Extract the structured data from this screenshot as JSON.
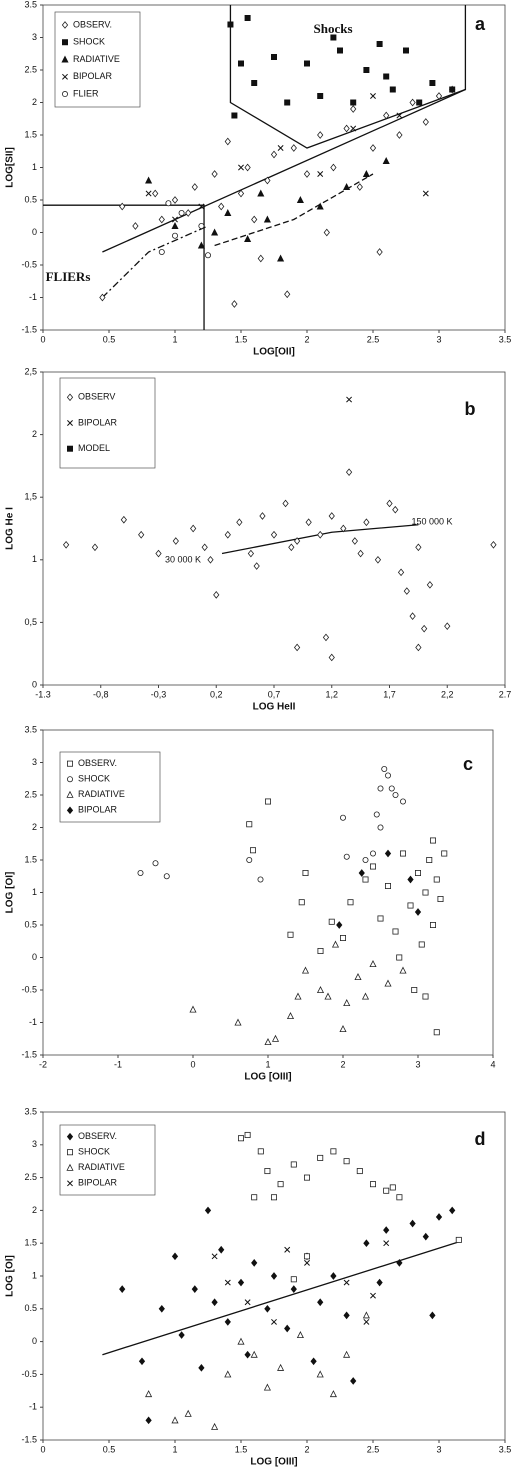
{
  "chart_data": [
    {
      "type": "scatter",
      "panel_label": "a",
      "xlabel": "LOG[OII]",
      "ylabel": "LOG[SII]",
      "xlim": [
        0,
        3.5
      ],
      "ylim": [
        -1.5,
        3.5
      ],
      "xticks": [
        0,
        0.5,
        1,
        1.5,
        2,
        2.5,
        3,
        3.5
      ],
      "yticks": [
        -1.5,
        -1,
        -0.5,
        0,
        0.5,
        1,
        1.5,
        2,
        2.5,
        3,
        3.5
      ],
      "legend": "upper left",
      "annotations": [
        "Shocks",
        "FLIERs"
      ],
      "series": [
        {
          "name": "OBSERV.",
          "marker": "diamond-open",
          "color": "#222",
          "x": [
            0.45,
            0.6,
            0.7,
            0.85,
            0.9,
            1.0,
            1.1,
            1.15,
            1.3,
            1.35,
            1.4,
            1.5,
            1.55,
            1.6,
            1.7,
            1.75,
            1.9,
            2.0,
            2.1,
            2.2,
            2.3,
            2.4,
            2.5,
            2.6,
            2.7,
            2.8,
            2.9,
            3.0,
            3.1,
            1.45,
            1.65,
            1.85,
            2.15,
            2.35,
            2.55
          ],
          "values": [
            -1.0,
            0.4,
            0.1,
            0.6,
            0.2,
            0.5,
            0.3,
            0.7,
            0.9,
            0.4,
            1.4,
            0.6,
            1.0,
            0.2,
            0.8,
            1.2,
            1.3,
            0.9,
            1.5,
            1.0,
            1.6,
            0.7,
            1.3,
            1.8,
            1.5,
            2.0,
            1.7,
            2.1,
            2.2,
            -1.1,
            -0.4,
            -0.95,
            0.0,
            1.9,
            -0.3
          ]
        },
        {
          "name": "SHOCK",
          "marker": "square-filled",
          "color": "#111",
          "x": [
            1.42,
            1.5,
            1.6,
            1.75,
            1.85,
            2.0,
            2.1,
            2.25,
            2.35,
            2.45,
            2.55,
            2.65,
            2.75,
            2.85,
            2.95,
            3.1,
            1.55,
            2.2,
            2.6,
            1.45
          ],
          "values": [
            3.2,
            2.6,
            2.3,
            2.7,
            2.0,
            2.6,
            2.1,
            2.8,
            2.0,
            2.5,
            2.9,
            2.2,
            2.8,
            2.0,
            2.3,
            2.2,
            3.3,
            3.0,
            2.4,
            1.8
          ]
        },
        {
          "name": "RADIATIVE",
          "marker": "triangle-filled",
          "color": "#111",
          "x": [
            0.8,
            1.0,
            1.2,
            1.4,
            1.55,
            1.7,
            1.8,
            1.95,
            2.1,
            2.3,
            2.45,
            2.6,
            1.3,
            1.65
          ],
          "values": [
            0.8,
            0.1,
            -0.2,
            0.3,
            -0.1,
            0.2,
            -0.4,
            0.5,
            0.4,
            0.7,
            0.9,
            1.1,
            0.0,
            0.6
          ]
        },
        {
          "name": "BIPOLAR",
          "marker": "x",
          "color": "#111",
          "x": [
            0.8,
            1.0,
            1.2,
            1.5,
            1.8,
            2.1,
            2.35,
            2.5,
            2.7,
            2.9
          ],
          "values": [
            0.6,
            0.2,
            0.4,
            1.0,
            1.3,
            0.9,
            1.6,
            2.1,
            1.8,
            0.6
          ]
        },
        {
          "name": "FLIER",
          "marker": "circle-open",
          "color": "#222",
          "x": [
            0.9,
            1.0,
            1.05,
            1.2,
            1.25,
            0.95
          ],
          "values": [
            -0.3,
            -0.05,
            0.3,
            0.1,
            -0.35,
            0.45
          ]
        }
      ],
      "lines": [
        {
          "style": "solid",
          "x": [
            0.45,
            3.2
          ],
          "values": [
            -0.3,
            2.2
          ]
        },
        {
          "style": "solid",
          "x": [
            0,
            1.22,
            1.22
          ],
          "values": [
            0.42,
            0.42,
            -1.5
          ]
        },
        {
          "style": "solid",
          "x": [
            1.42,
            1.42,
            2.0,
            3.2,
            3.2
          ],
          "values": [
            3.5,
            2.0,
            1.3,
            2.2,
            3.5
          ]
        },
        {
          "style": "dashdot",
          "x": [
            0.45,
            0.8,
            1.25
          ],
          "values": [
            -1.0,
            -0.3,
            0.1
          ]
        },
        {
          "style": "dash",
          "x": [
            1.3,
            1.9,
            2.5
          ],
          "values": [
            -0.2,
            0.2,
            0.9
          ]
        }
      ]
    },
    {
      "type": "scatter",
      "panel_label": "b",
      "xlabel": "LOG HeII",
      "ylabel": "LOG He I",
      "xlim": [
        -1.3,
        2.7
      ],
      "ylim": [
        0,
        2.5
      ],
      "xticks": [
        {
          "value": -1.3,
          "label": "-1.3"
        },
        {
          "value": -0.8,
          "label": "-0,8"
        },
        {
          "value": -0.3,
          "label": "-0,3"
        },
        {
          "value": 0.2,
          "label": "0,2"
        },
        {
          "value": 0.7,
          "label": "0,7"
        },
        {
          "value": 1.2,
          "label": "1,2"
        },
        {
          "value": 1.7,
          "label": "1,7"
        },
        {
          "value": 2.2,
          "label": "2,2"
        },
        {
          "value": 2.7,
          "label": "2.7"
        }
      ],
      "yticks": [
        0,
        {
          "value": 0.5,
          "label": "0,5"
        },
        1,
        {
          "value": 1.5,
          "label": "1,5"
        },
        2,
        {
          "value": 2.5,
          "label": "2,5"
        }
      ],
      "legend": "upper left",
      "annotations": [
        "30 000 K",
        "150 000 K"
      ],
      "series": [
        {
          "name": "OBSERV",
          "marker": "diamond-open",
          "color": "#222",
          "x": [
            -1.1,
            -0.85,
            -0.6,
            -0.45,
            -0.3,
            -0.15,
            0.0,
            0.1,
            0.2,
            0.3,
            0.4,
            0.5,
            0.6,
            0.7,
            0.8,
            0.9,
            1.0,
            1.1,
            1.2,
            1.3,
            1.35,
            1.4,
            1.5,
            1.6,
            1.7,
            1.8,
            1.85,
            1.9,
            1.95,
            2.0,
            2.05,
            2.2,
            2.6,
            0.15,
            0.55,
            0.85,
            1.15,
            1.45,
            1.75,
            1.95,
            0.9,
            1.2
          ],
          "values": [
            1.12,
            1.1,
            1.32,
            1.2,
            1.05,
            1.15,
            1.25,
            1.1,
            0.72,
            1.2,
            1.3,
            1.05,
            1.35,
            1.2,
            1.45,
            1.15,
            1.3,
            1.2,
            1.35,
            1.25,
            1.7,
            1.15,
            1.3,
            1.0,
            1.45,
            0.9,
            0.75,
            0.55,
            0.3,
            0.45,
            0.8,
            0.47,
            1.12,
            1.0,
            0.95,
            1.1,
            0.38,
            1.05,
            1.4,
            1.1,
            0.3,
            0.22
          ]
        },
        {
          "name": "BIPOLAR",
          "marker": "x",
          "color": "#111",
          "x": [
            1.35
          ],
          "values": [
            2.28
          ]
        },
        {
          "name": "MODEL",
          "marker": "square-filled",
          "color": "#111",
          "x": [],
          "values": []
        }
      ],
      "lines": [
        {
          "style": "solid",
          "x": [
            0.25,
            1.2,
            1.95
          ],
          "values": [
            1.05,
            1.22,
            1.28
          ]
        }
      ]
    },
    {
      "type": "scatter",
      "panel_label": "c",
      "xlabel": "LOG [OIII]",
      "ylabel": "LOG [OI]",
      "xlim": [
        -2,
        4
      ],
      "ylim": [
        -1.5,
        3.5
      ],
      "xticks": [
        -2,
        -1,
        0,
        1,
        2,
        3,
        4
      ],
      "yticks": [
        -1.5,
        -1,
        -0.5,
        0,
        0.5,
        1,
        1.5,
        2,
        2.5,
        3,
        3.5
      ],
      "legend": "upper left",
      "series": [
        {
          "name": "OBSERV.",
          "marker": "square-open",
          "color": "#222",
          "x": [
            0.75,
            1.0,
            0.8,
            1.3,
            1.45,
            1.5,
            1.7,
            1.85,
            2.0,
            2.1,
            2.3,
            2.4,
            2.5,
            2.6,
            2.7,
            2.8,
            2.9,
            3.0,
            3.05,
            3.1,
            3.15,
            3.2,
            3.25,
            3.3,
            3.35,
            2.95,
            3.1,
            3.25,
            2.75,
            3.2
          ],
          "values": [
            2.05,
            2.4,
            1.65,
            0.35,
            0.85,
            1.3,
            0.1,
            0.55,
            0.3,
            0.85,
            1.2,
            1.4,
            0.6,
            1.1,
            0.4,
            1.6,
            0.8,
            1.3,
            0.2,
            1.0,
            1.5,
            0.5,
            1.2,
            0.9,
            1.6,
            -0.5,
            -0.6,
            -1.15,
            0.0,
            1.8
          ]
        },
        {
          "name": "SHOCK",
          "marker": "circle-open",
          "color": "#222",
          "x": [
            -0.7,
            -0.5,
            -0.35,
            0.75,
            0.9,
            2.0,
            2.05,
            2.3,
            2.45,
            2.5,
            2.55,
            2.6,
            2.65,
            2.7,
            2.8,
            2.5,
            2.4
          ],
          "values": [
            1.3,
            1.45,
            1.25,
            1.5,
            1.2,
            2.15,
            1.55,
            1.5,
            2.2,
            2.6,
            2.9,
            2.8,
            2.6,
            2.5,
            2.4,
            2.0,
            1.6
          ]
        },
        {
          "name": "RADIATIVE",
          "marker": "triangle-open",
          "color": "#222",
          "x": [
            0.0,
            0.6,
            1.0,
            1.1,
            1.3,
            1.4,
            1.5,
            1.7,
            1.8,
            2.0,
            2.05,
            2.2,
            2.3,
            2.4,
            2.6,
            2.8,
            1.9
          ],
          "values": [
            -0.8,
            -1.0,
            -1.3,
            -1.25,
            -0.9,
            -0.6,
            -0.2,
            -0.5,
            -0.6,
            -1.1,
            -0.7,
            -0.3,
            -0.6,
            -0.1,
            -0.4,
            -0.2,
            0.2
          ]
        },
        {
          "name": "BIPOLAR",
          "marker": "diamond-filled",
          "color": "#111",
          "x": [
            1.95,
            2.25,
            2.6,
            2.9,
            3.0
          ],
          "values": [
            0.5,
            1.3,
            1.6,
            1.2,
            0.7
          ]
        }
      ]
    },
    {
      "type": "scatter",
      "panel_label": "d",
      "xlabel": "LOG [OIII]",
      "ylabel": "LOG [OI]",
      "xlim": [
        0,
        3.5
      ],
      "ylim": [
        -1.5,
        3.5
      ],
      "xticks": [
        0,
        0.5,
        1,
        1.5,
        2,
        2.5,
        3,
        3.5
      ],
      "yticks": [
        -1.5,
        -1,
        -0.5,
        0,
        0.5,
        1,
        1.5,
        2,
        2.5,
        3,
        3.5
      ],
      "legend": "upper left",
      "series": [
        {
          "name": "OBSERV.",
          "marker": "diamond-filled",
          "color": "#111",
          "x": [
            0.6,
            0.75,
            0.8,
            0.9,
            1.0,
            1.05,
            1.15,
            1.2,
            1.3,
            1.35,
            1.4,
            1.5,
            1.55,
            1.6,
            1.7,
            1.75,
            1.85,
            1.9,
            2.0,
            2.05,
            2.1,
            2.2,
            2.3,
            2.35,
            2.45,
            2.55,
            2.6,
            2.7,
            2.8,
            2.9,
            3.0,
            3.1,
            2.95,
            1.25
          ],
          "values": [
            0.8,
            -0.3,
            -1.2,
            0.5,
            1.3,
            0.1,
            0.8,
            -0.4,
            0.6,
            1.4,
            0.3,
            0.9,
            -0.2,
            1.2,
            0.5,
            1.0,
            0.2,
            0.8,
            1.3,
            -0.3,
            0.6,
            1.0,
            0.4,
            -0.6,
            1.5,
            0.9,
            1.7,
            1.2,
            1.8,
            1.6,
            1.9,
            2.0,
            0.4,
            2.0
          ]
        },
        {
          "name": "SHOCK",
          "marker": "square-open",
          "color": "#222",
          "x": [
            1.5,
            1.55,
            1.65,
            1.7,
            1.8,
            1.9,
            2.0,
            2.1,
            2.2,
            2.3,
            2.4,
            2.5,
            2.6,
            2.7,
            1.6,
            1.75,
            2.65,
            3.15,
            2.0,
            1.9
          ],
          "values": [
            3.1,
            3.15,
            2.9,
            2.6,
            2.4,
            2.7,
            2.5,
            2.8,
            2.9,
            2.75,
            2.6,
            2.4,
            2.3,
            2.2,
            2.2,
            2.2,
            2.35,
            1.55,
            1.3,
            0.95
          ]
        },
        {
          "name": "RADIATIVE",
          "marker": "triangle-open",
          "color": "#222",
          "x": [
            0.8,
            1.0,
            1.1,
            1.3,
            1.4,
            1.6,
            1.7,
            1.8,
            1.95,
            2.1,
            2.3,
            2.45,
            1.5,
            2.2
          ],
          "values": [
            -0.8,
            -1.2,
            -1.1,
            -1.3,
            -0.5,
            -0.2,
            -0.7,
            -0.4,
            0.1,
            -0.5,
            -0.2,
            0.4,
            0.0,
            -0.8
          ]
        },
        {
          "name": "BIPOLAR",
          "marker": "x",
          "color": "#111",
          "x": [
            1.3,
            1.4,
            1.55,
            1.75,
            2.0,
            2.3,
            2.5,
            2.6,
            1.85,
            2.45
          ],
          "values": [
            1.3,
            0.9,
            0.6,
            0.3,
            1.2,
            0.9,
            0.7,
            1.5,
            1.4,
            0.3
          ]
        }
      ],
      "lines": [
        {
          "style": "solid",
          "x": [
            0.45,
            3.15
          ],
          "values": [
            -0.2,
            1.52
          ]
        }
      ]
    }
  ]
}
